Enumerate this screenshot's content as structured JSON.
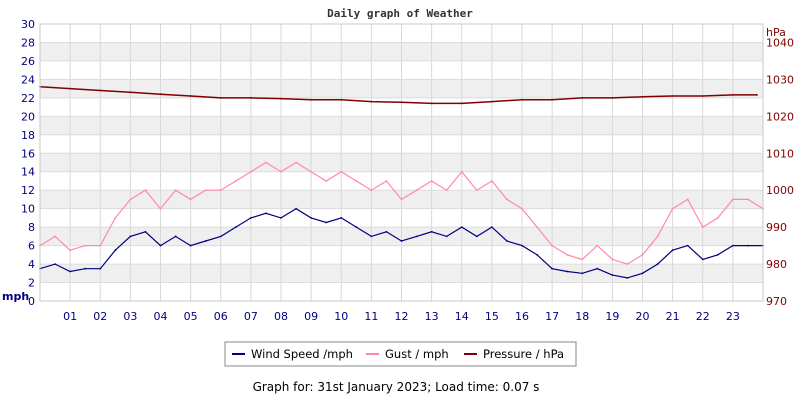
{
  "chart_data": {
    "type": "line",
    "title": "Daily graph of Weather",
    "footer": "Graph for: 31st January 2023; Load time: 0.07 s",
    "left_axis": {
      "unit": "mph",
      "ylim": [
        0,
        30
      ],
      "ticks": [
        0,
        2,
        4,
        6,
        8,
        10,
        12,
        14,
        16,
        18,
        20,
        22,
        24,
        26,
        28,
        30
      ]
    },
    "right_axis": {
      "unit": "hPa",
      "ylim": [
        970,
        1045
      ],
      "ticks": [
        970,
        980,
        990,
        1000,
        1010,
        1020,
        1030,
        1040
      ]
    },
    "x_axis": {
      "range": [
        0,
        24
      ],
      "tick_labels": [
        "01",
        "02",
        "03",
        "04",
        "05",
        "06",
        "07",
        "08",
        "09",
        "10",
        "11",
        "12",
        "13",
        "14",
        "15",
        "16",
        "17",
        "18",
        "19",
        "20",
        "21",
        "22",
        "23"
      ]
    },
    "grid": true,
    "legend": {
      "placement": "bottom-center"
    },
    "series": [
      {
        "name": "Wind Speed /mph",
        "axis": "left",
        "color": "#000080",
        "x": [
          0,
          0.5,
          1,
          1.5,
          2,
          2.5,
          3,
          3.5,
          4,
          4.5,
          5,
          5.5,
          6,
          6.5,
          7,
          7.5,
          8,
          8.5,
          9,
          9.5,
          10,
          10.5,
          11,
          11.5,
          12,
          12.5,
          13,
          13.5,
          14,
          14.5,
          15,
          15.5,
          16,
          16.5,
          17,
          17.5,
          18,
          18.5,
          19,
          19.5,
          20,
          20.5,
          21,
          21.5,
          22,
          22.5,
          23,
          23.5,
          24
        ],
        "values": [
          3.5,
          4,
          3.2,
          3.5,
          3.5,
          5.5,
          7,
          7.5,
          6,
          7,
          6,
          6.5,
          7,
          8,
          9,
          9.5,
          9,
          10,
          9,
          8.5,
          9,
          8,
          7,
          7.5,
          6.5,
          7,
          7.5,
          7,
          8,
          7,
          8,
          6.5,
          6,
          5,
          3.5,
          3.2,
          3,
          3.5,
          2.8,
          2.5,
          3,
          4,
          5.5,
          6,
          4.5,
          5,
          6,
          6,
          6
        ]
      },
      {
        "name": "Gust / mph",
        "axis": "left",
        "color": "#ff88aa",
        "x": [
          0,
          0.5,
          1,
          1.5,
          2,
          2.5,
          3,
          3.5,
          4,
          4.5,
          5,
          5.5,
          6,
          6.5,
          7,
          7.5,
          8,
          8.5,
          9,
          9.5,
          10,
          10.5,
          11,
          11.5,
          12,
          12.5,
          13,
          13.5,
          14,
          14.5,
          15,
          15.5,
          16,
          16.5,
          17,
          17.5,
          18,
          18.5,
          19,
          19.5,
          20,
          20.5,
          21,
          21.5,
          22,
          22.5,
          23,
          23.5,
          24
        ],
        "values": [
          6,
          7,
          5.5,
          6,
          6,
          9,
          11,
          12,
          10,
          12,
          11,
          12,
          12,
          13,
          14,
          15,
          14,
          15,
          14,
          13,
          14,
          13,
          12,
          13,
          11,
          12,
          13,
          12,
          14,
          12,
          13,
          11,
          10,
          8,
          6,
          5,
          4.5,
          6,
          4.5,
          4,
          5,
          7,
          10,
          11,
          8,
          9,
          11,
          11,
          10
        ]
      },
      {
        "name": "Pressure / hPa",
        "axis": "right",
        "color": "#800000",
        "x": [
          0,
          1,
          2,
          3,
          4,
          5,
          6,
          7,
          8,
          9,
          10,
          11,
          12,
          13,
          14,
          15,
          16,
          17,
          18,
          19,
          20,
          21,
          22,
          23,
          23.8
        ],
        "values": [
          1028,
          1027.5,
          1027,
          1026.5,
          1026,
          1025.5,
          1025,
          1025,
          1024.8,
          1024.5,
          1024.5,
          1024,
          1023.8,
          1023.5,
          1023.5,
          1024,
          1024.5,
          1024.5,
          1025,
          1025,
          1025.3,
          1025.5,
          1025.5,
          1025.8,
          1025.8
        ]
      }
    ]
  }
}
